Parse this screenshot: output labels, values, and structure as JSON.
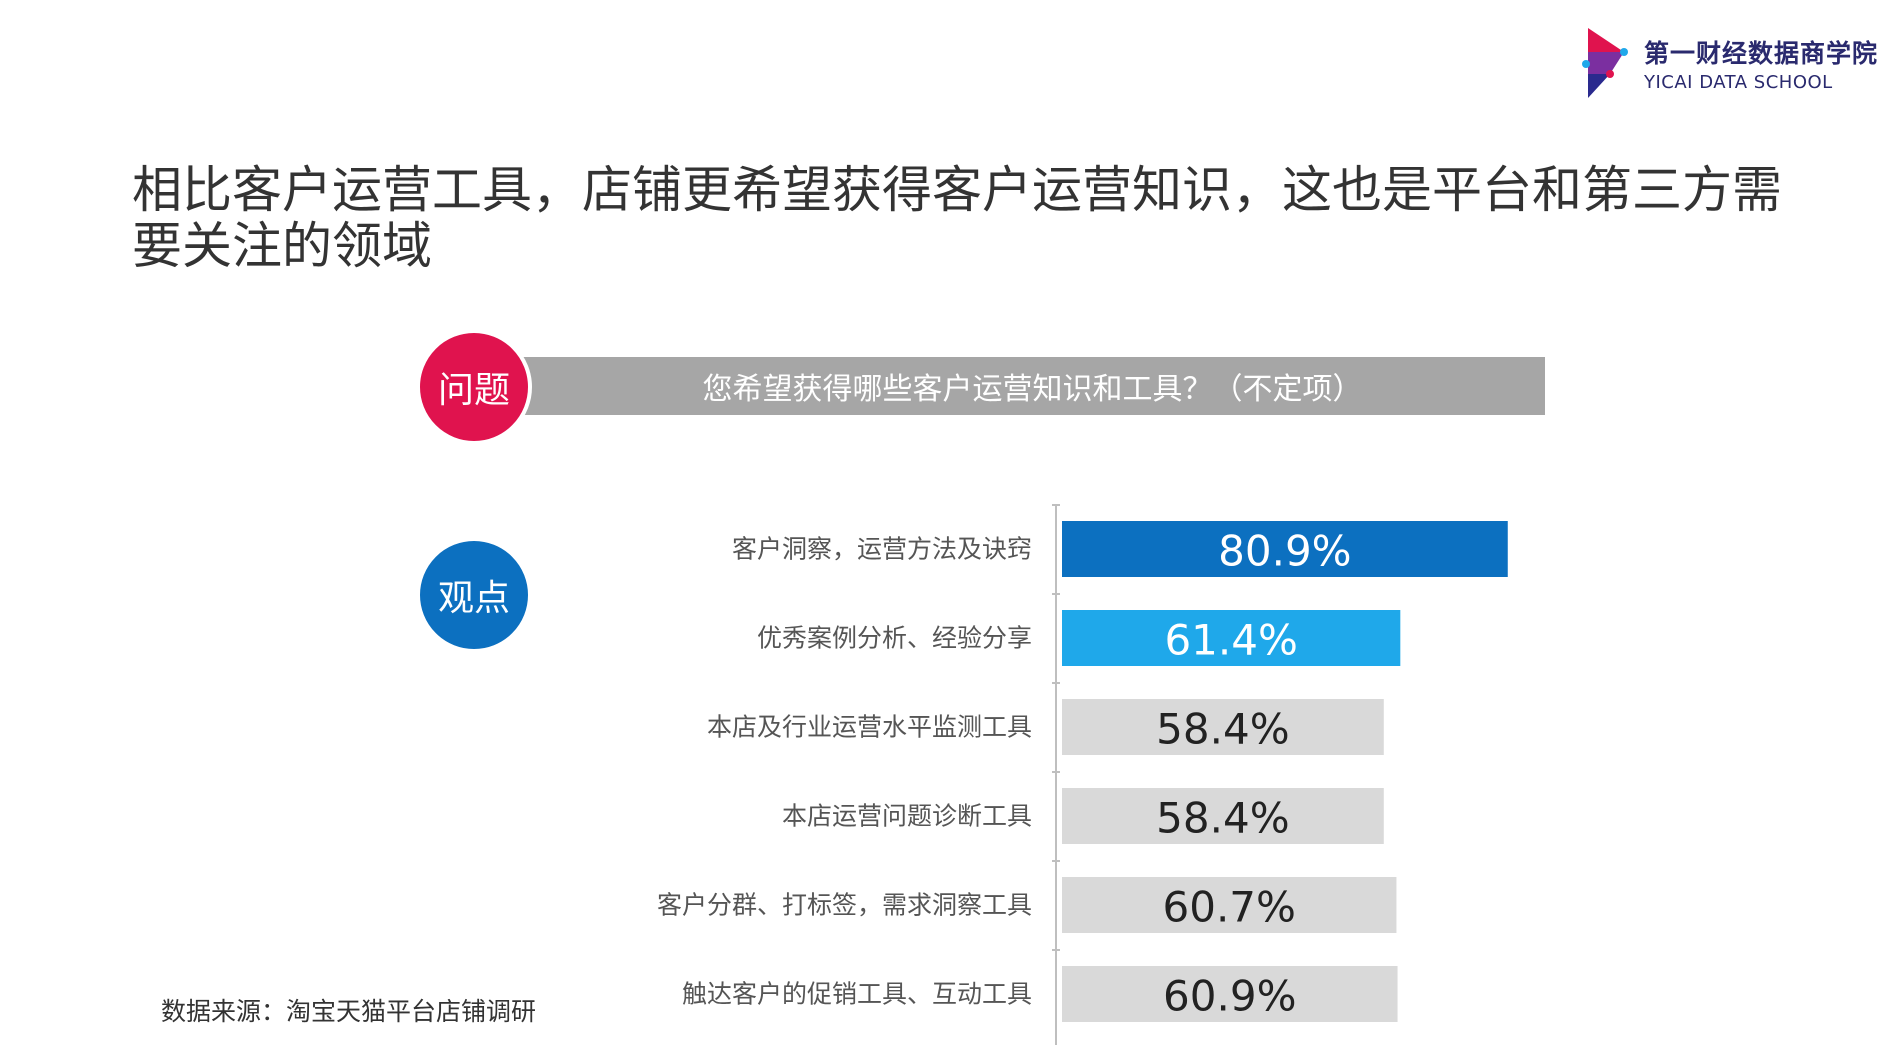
{
  "header": {
    "logo_cn": "第一财经数据商学院",
    "logo_en": "YICAI DATA SCHOOL",
    "logo_icon": "yicai-logo-icon",
    "title": "相比客户运营工具，店铺更希望获得客户运营知识，这也是平台和第三方需要关注的领域"
  },
  "question": {
    "tag": "问题",
    "text": "您希望获得哪些客户运营知识和工具？（不定项）",
    "tag_color": "#e0134e",
    "band_color": "#a6a6a6"
  },
  "view": {
    "tag": "观点",
    "tag_color": "#0c70c0"
  },
  "chart_data": {
    "type": "bar",
    "orientation": "horizontal",
    "categories": [
      "客户洞察，运营方法及诀窍",
      "优秀案例分析、经验分享",
      "本店及行业运营水平监测工具",
      "本店运营问题诊断工具",
      "客户分群、打标签，需求洞察工具",
      "触达客户的促销工具、互动工具"
    ],
    "values": [
      80.9,
      61.4,
      58.4,
      58.4,
      60.7,
      60.9
    ],
    "labels": [
      "80.9%",
      "61.4%",
      "58.4%",
      "58.4%",
      "60.7%",
      "60.9%"
    ],
    "unit": "%",
    "colors": [
      "#0c70c0",
      "#1fa8ea",
      "#d9d9d9",
      "#d9d9d9",
      "#d9d9d9",
      "#d9d9d9"
    ],
    "label_colors": [
      "#ffffff",
      "#ffffff",
      "#222222",
      "#222222",
      "#222222",
      "#222222"
    ],
    "grid": false,
    "legend": "none"
  },
  "footer": {
    "source": "数据来源：淘宝天猫平台店铺调研"
  }
}
